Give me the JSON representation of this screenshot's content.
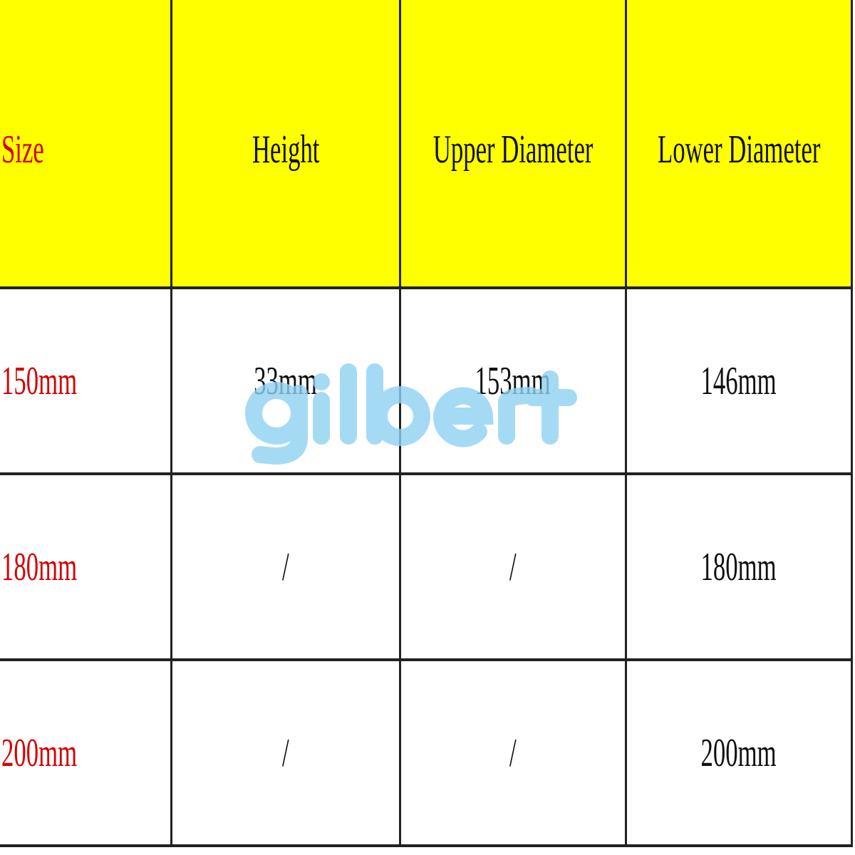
{
  "table": {
    "headers": [
      "Size",
      "Height",
      "Upper Diameter",
      "Lower Diameter"
    ],
    "rows": [
      [
        "150mm",
        "33mm",
        "153mm",
        "146mm"
      ],
      [
        "180mm",
        "/",
        "/",
        "180mm"
      ],
      [
        "200mm",
        "/",
        "/",
        "200mm"
      ]
    ]
  },
  "colors": {
    "header_bg": "#ffff00",
    "size_text": "#d40000",
    "watermark": "#8fd1f2"
  },
  "watermark": "gilbert"
}
